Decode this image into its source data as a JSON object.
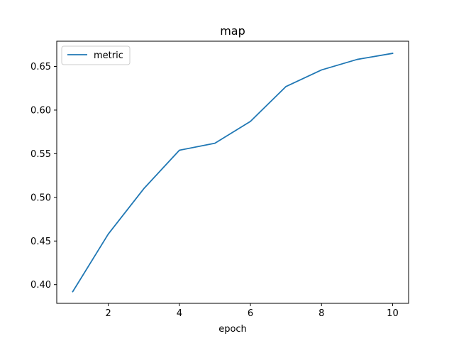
{
  "chart_data": {
    "type": "line",
    "title": "map",
    "xlabel": "epoch",
    "ylabel": "",
    "xlim": [
      0.55,
      10.45
    ],
    "ylim": [
      0.3786,
      0.6789
    ],
    "xticks": [
      2,
      4,
      6,
      8,
      10
    ],
    "yticks": [
      0.4,
      0.45,
      0.5,
      0.55,
      0.6,
      0.65
    ],
    "xtick_labels": [
      "2",
      "4",
      "6",
      "8",
      "10"
    ],
    "ytick_labels": [
      "0.40",
      "0.45",
      "0.50",
      "0.55",
      "0.60",
      "0.65"
    ],
    "grid": false,
    "legend": "top-left",
    "series": [
      {
        "name": "metric",
        "color": "#1f77b4",
        "x": [
          1,
          2,
          3,
          4,
          5,
          6,
          7,
          8,
          9,
          10
        ],
        "values": [
          0.392,
          0.458,
          0.51,
          0.554,
          0.562,
          0.587,
          0.627,
          0.646,
          0.658,
          0.665
        ]
      }
    ]
  }
}
